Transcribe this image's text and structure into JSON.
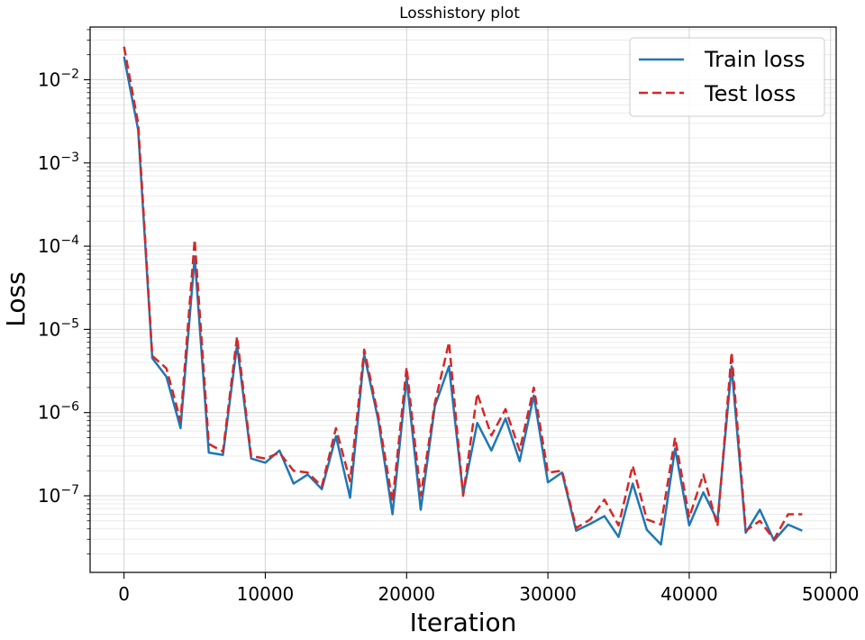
{
  "chart_data": {
    "type": "line",
    "title": "Losshistory plot",
    "xlabel": "Iteration",
    "ylabel": "Loss",
    "xscale": "linear",
    "yscale": "log",
    "xlim": [
      -2400,
      50400
    ],
    "ylim": [
      1.2e-08,
      0.043
    ],
    "xticks": [
      0,
      10000,
      20000,
      30000,
      40000,
      50000
    ],
    "xtick_labels": [
      "0",
      "10000",
      "20000",
      "30000",
      "40000",
      "50000"
    ],
    "yticks": [
      {
        "value": 0.01,
        "base": "10",
        "exp": "−2"
      },
      {
        "value": 0.001,
        "base": "10",
        "exp": "−3"
      },
      {
        "value": 0.0001,
        "base": "10",
        "exp": "−4"
      },
      {
        "value": 1e-05,
        "base": "10",
        "exp": "−5"
      },
      {
        "value": 1e-06,
        "base": "10",
        "exp": "−6"
      },
      {
        "value": 1e-07,
        "base": "10",
        "exp": "−7"
      }
    ],
    "grid": true,
    "grid_minor": true,
    "legend_position": "top-right",
    "x": [
      0,
      1000,
      2000,
      3000,
      4000,
      5000,
      6000,
      7000,
      8000,
      9000,
      10000,
      11000,
      12000,
      13000,
      14000,
      15000,
      16000,
      17000,
      18000,
      19000,
      20000,
      21000,
      22000,
      23000,
      24000,
      25000,
      26000,
      27000,
      28000,
      29000,
      30000,
      31000,
      32000,
      33000,
      34000,
      35000,
      36000,
      37000,
      38000,
      39000,
      40000,
      41000,
      42000,
      43000,
      44000,
      45000,
      46000,
      47000,
      48000
    ],
    "series": [
      {
        "name": "Train loss",
        "color": "#1f77b4",
        "dash": "solid",
        "values": [
          0.019,
          0.0025,
          4.5e-06,
          2.7e-06,
          6.5e-07,
          7.5e-05,
          3.3e-07,
          3.1e-07,
          6.5e-06,
          2.8e-07,
          2.5e-07,
          3.5e-07,
          1.4e-07,
          1.8e-07,
          1.2e-07,
          5.2e-07,
          9.5e-08,
          5e-06,
          8e-07,
          6e-08,
          2.6e-06,
          6.8e-08,
          1.2e-06,
          3.6e-06,
          1.05e-07,
          7.5e-07,
          3.5e-07,
          8.5e-07,
          2.6e-07,
          1.6e-06,
          1.45e-07,
          1.9e-07,
          3.8e-08,
          4.6e-08,
          5.7e-08,
          3.2e-08,
          1.4e-07,
          3.9e-08,
          2.6e-08,
          3.7e-07,
          4.4e-08,
          1.1e-07,
          5e-08,
          3.6e-06,
          3.6e-08,
          6.8e-08,
          2.9e-08,
          4.5e-08,
          3.8e-08
        ]
      },
      {
        "name": "Test loss",
        "color": "#d62728",
        "dash": "dashed",
        "values": [
          0.025,
          0.003,
          4.8e-06,
          3.4e-06,
          8e-07,
          0.00012,
          4.2e-07,
          3.4e-07,
          8.2e-06,
          3e-07,
          2.8e-07,
          3.3e-07,
          2e-07,
          1.9e-07,
          1.3e-07,
          6.5e-07,
          1.5e-07,
          5.7e-06,
          9e-07,
          8.5e-08,
          3.5e-06,
          1e-07,
          1.3e-06,
          7e-06,
          1e-07,
          1.7e-06,
          5.3e-07,
          1.1e-06,
          3.5e-07,
          2e-06,
          1.9e-07,
          2e-07,
          4.1e-08,
          5.2e-08,
          9e-08,
          4.4e-08,
          2.3e-07,
          5.2e-08,
          4.5e-08,
          5e-07,
          5.5e-08,
          1.8e-07,
          4.3e-08,
          5.3e-06,
          3.8e-08,
          5e-08,
          3e-08,
          6e-08,
          6e-08
        ]
      }
    ]
  }
}
